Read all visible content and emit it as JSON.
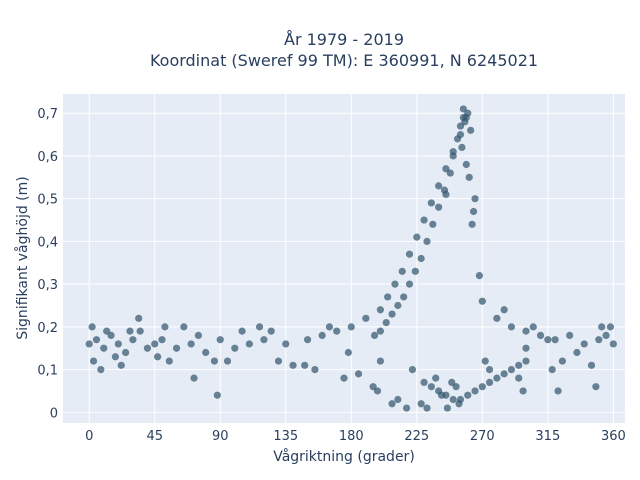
{
  "chart_data": {
    "type": "scatter",
    "title_line1": "År 1979 - 2019",
    "title_line2": "Koordinat (Sweref 99 TM): E 360991, N 6245021",
    "xlabel": "Vågriktning (grader)",
    "ylabel": "Signifikant våghöjd (m)",
    "xlim": [
      -18,
      368
    ],
    "ylim": [
      -0.025,
      0.745
    ],
    "xticks": [
      0,
      45,
      90,
      135,
      180,
      225,
      270,
      315,
      360
    ],
    "xtick_labels": [
      "0",
      "45",
      "90",
      "135",
      "180",
      "225",
      "270",
      "315",
      "360"
    ],
    "yticks": [
      0,
      0.1,
      0.2,
      0.3,
      0.4,
      0.5,
      0.6,
      0.7
    ],
    "ytick_labels": [
      "0",
      "0,1",
      "0,2",
      "0,3",
      "0,4",
      "0,5",
      "0,6",
      "0,7"
    ],
    "grid": true,
    "series": [
      {
        "color": "#34566d",
        "x": [
          0,
          5,
          10,
          15,
          20,
          25,
          30,
          40,
          45,
          50,
          60,
          70,
          80,
          90,
          100,
          110,
          120,
          135,
          150,
          160,
          170,
          180,
          190,
          200,
          205,
          210,
          215,
          220,
          225,
          230,
          235,
          240,
          245,
          250,
          255,
          258,
          260,
          262,
          265,
          270,
          280,
          290,
          300,
          310,
          315,
          320,
          330,
          340,
          350,
          355,
          360,
          3,
          12,
          22,
          47,
          65,
          95,
          125,
          140,
          165,
          185,
          198,
          212,
          228,
          242,
          252,
          256,
          261,
          275,
          295,
          305,
          325,
          345,
          358,
          2,
          18,
          35,
          55,
          75,
          105,
          130,
          155,
          175,
          195,
          208,
          218,
          232,
          246,
          254,
          259,
          263,
          268,
          285,
          300,
          318,
          335,
          352,
          8,
          28,
          52,
          86,
          117,
          148,
          178,
          200,
          222,
          238,
          249,
          257,
          264,
          272,
          298,
          322,
          348,
          88,
          34,
          72,
          245,
          250,
          253,
          255,
          257,
          259,
          248,
          244,
          240,
          236,
          232,
          228,
          224,
          220,
          216,
          212,
          208,
          204,
          200,
          196,
          230,
          235,
          240,
          245,
          250,
          255,
          260,
          265,
          270,
          275,
          280,
          285,
          290,
          295,
          300
        ],
        "y": [
          0.16,
          0.17,
          0.15,
          0.18,
          0.16,
          0.14,
          0.17,
          0.15,
          0.16,
          0.17,
          0.15,
          0.16,
          0.14,
          0.17,
          0.15,
          0.16,
          0.17,
          0.16,
          0.17,
          0.18,
          0.19,
          0.2,
          0.22,
          0.24,
          0.27,
          0.3,
          0.33,
          0.37,
          0.41,
          0.45,
          0.49,
          0.53,
          0.57,
          0.61,
          0.65,
          0.68,
          0.7,
          0.66,
          0.5,
          0.26,
          0.22,
          0.2,
          0.19,
          0.18,
          0.17,
          0.17,
          0.18,
          0.16,
          0.17,
          0.18,
          0.16,
          0.12,
          0.19,
          0.11,
          0.13,
          0.2,
          0.12,
          0.19,
          0.11,
          0.2,
          0.09,
          0.05,
          0.03,
          0.02,
          0.04,
          0.06,
          0.62,
          0.55,
          0.1,
          0.08,
          0.2,
          0.12,
          0.11,
          0.2,
          0.2,
          0.13,
          0.19,
          0.12,
          0.18,
          0.19,
          0.12,
          0.1,
          0.08,
          0.06,
          0.02,
          0.01,
          0.01,
          0.01,
          0.02,
          0.58,
          0.44,
          0.32,
          0.24,
          0.15,
          0.1,
          0.14,
          0.2,
          0.1,
          0.19,
          0.2,
          0.12,
          0.2,
          0.11,
          0.14,
          0.12,
          0.1,
          0.08,
          0.07,
          0.69,
          0.47,
          0.12,
          0.05,
          0.05,
          0.06,
          0.04,
          0.22,
          0.08,
          0.51,
          0.6,
          0.64,
          0.67,
          0.71,
          0.69,
          0.56,
          0.52,
          0.48,
          0.44,
          0.4,
          0.36,
          0.33,
          0.3,
          0.27,
          0.25,
          0.23,
          0.21,
          0.19,
          0.18,
          0.07,
          0.06,
          0.05,
          0.04,
          0.03,
          0.03,
          0.04,
          0.05,
          0.06,
          0.07,
          0.08,
          0.09,
          0.1,
          0.11,
          0.12
        ]
      }
    ]
  }
}
